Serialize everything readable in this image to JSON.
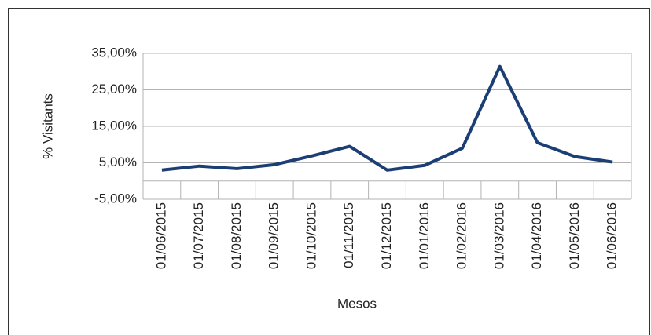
{
  "chart_data": {
    "type": "line",
    "x_label": "Mesos",
    "y_label": "% Visitants",
    "categories": [
      "01/06/2015",
      "01/07/2015",
      "01/08/2015",
      "01/09/2015",
      "01/10/2015",
      "01/11/2015",
      "01/12/2015",
      "01/01/2016",
      "01/02/2016",
      "01/03/2016",
      "01/04/2016",
      "01/05/2016",
      "01/06/2016"
    ],
    "series": [
      {
        "name": "% Visitants",
        "color": "#1b3f75",
        "values": [
          3.0,
          4.1,
          3.4,
          4.5,
          6.9,
          9.5,
          3.0,
          4.3,
          9.0,
          31.4,
          10.5,
          6.7,
          5.2
        ]
      }
    ],
    "ylim": [
      -5,
      35
    ],
    "yticks": [
      {
        "value": -5,
        "label": "-5,00%"
      },
      {
        "value": 5,
        "label": "5,00%"
      },
      {
        "value": 15,
        "label": "15,00%"
      },
      {
        "value": 25,
        "label": "25,00%"
      },
      {
        "value": 35,
        "label": "35,00%"
      }
    ],
    "grid": true
  }
}
